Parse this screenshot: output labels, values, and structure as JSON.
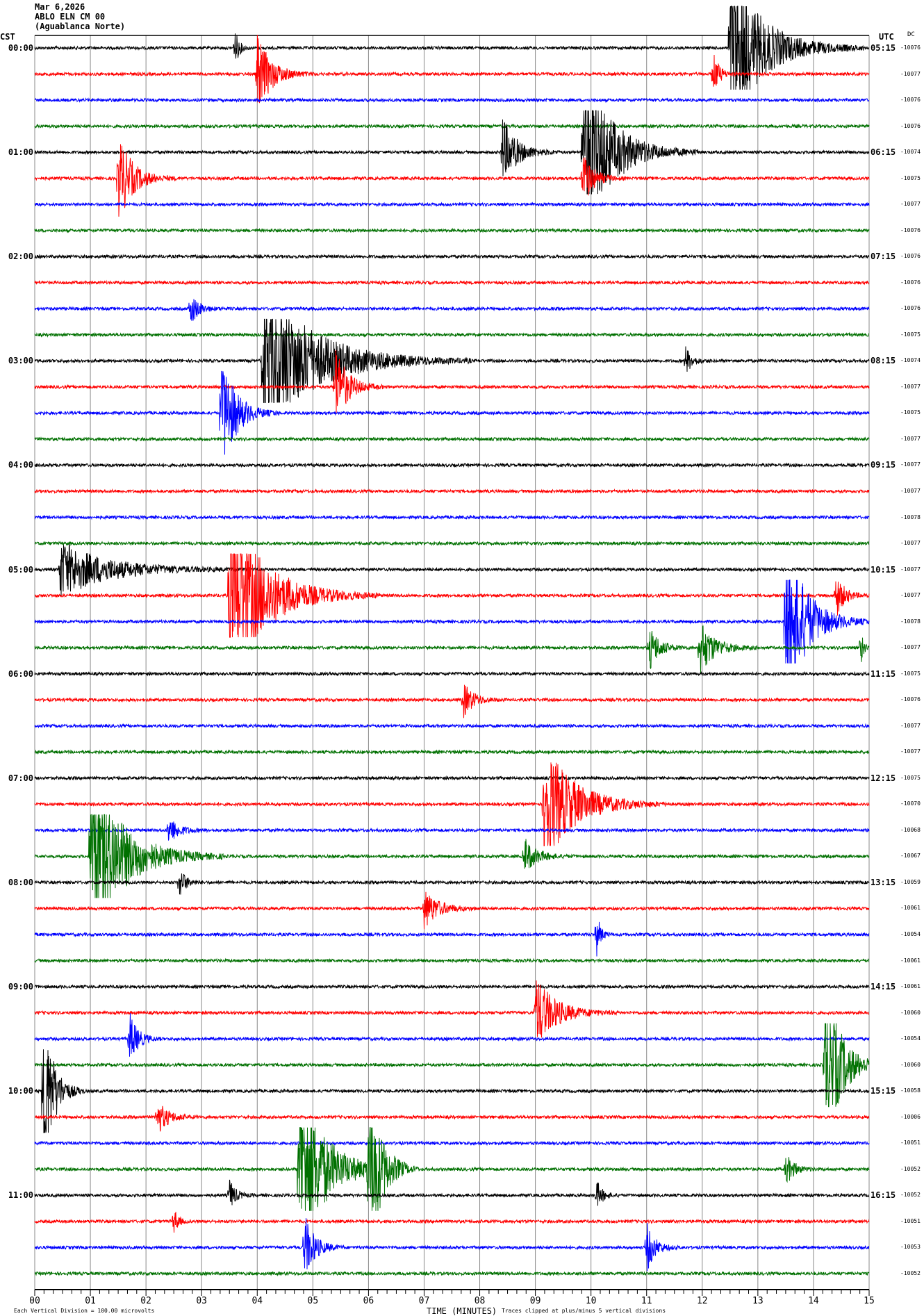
{
  "header": {
    "date": "Mar 6,2026",
    "station": "ABLO ELN CM 00",
    "location": "(Aguablanca Norte)"
  },
  "left_tz": "CST",
  "right_tz": "UTC",
  "dc_label": "DC",
  "footer": {
    "scale_note": "Each Vertical Division =  100.00 microvolts",
    "xlabel": "TIME (MINUTES)",
    "clip_note": "Traces clipped at plus/minus 5 vertical divisions"
  },
  "chart_data": {
    "type": "line",
    "title": "",
    "xlabel": "TIME (MINUTES)",
    "xlim": [
      0,
      15
    ],
    "x_ticks": [
      "00",
      "01",
      "02",
      "03",
      "04",
      "05",
      "06",
      "07",
      "08",
      "09",
      "10",
      "11",
      "12",
      "13",
      "14",
      "15"
    ],
    "grid": true,
    "trace_colors": [
      "#000000",
      "#ff0000",
      "#0000ff",
      "#007000"
    ],
    "cst_labels": [
      "00:00",
      "01:00",
      "02:00",
      "03:00",
      "04:00",
      "05:00",
      "06:00",
      "07:00",
      "08:00",
      "09:00",
      "10:00",
      "11:00"
    ],
    "utc_labels": [
      "05:15",
      "06:15",
      "07:15",
      "08:15",
      "09:15",
      "10:15",
      "11:15",
      "12:15",
      "13:15",
      "14:15",
      "15:15",
      "16:15"
    ],
    "dc_offsets": [
      -10076,
      -10077,
      -10076,
      -10076,
      -10074,
      -10075,
      -10077,
      -10076,
      -10076,
      -10076,
      -10076,
      -10075,
      -10074,
      -10077,
      -10075,
      -10077,
      -10077,
      -10077,
      -10078,
      -10077,
      -10077,
      -10077,
      -10078,
      -10077,
      -10075,
      -10076,
      -10077,
      -10077,
      -10075,
      -10070,
      -10068,
      -10067,
      -10059,
      -10061,
      -10054,
      -10061,
      -10061,
      -10060,
      -10054,
      -10060,
      -10058,
      -10006,
      -10051,
      -10052,
      -10052,
      -10051,
      -10053,
      -10052
    ],
    "clip_divisions": 5,
    "events": [
      {
        "row": 0,
        "minute": 12.5,
        "amp": 4.5,
        "dur": 1.6
      },
      {
        "row": 0,
        "minute": 3.6,
        "amp": 1.0,
        "dur": 0.2
      },
      {
        "row": 1,
        "minute": 4.0,
        "amp": 2.2,
        "dur": 0.7
      },
      {
        "row": 1,
        "minute": 12.2,
        "amp": 1.2,
        "dur": 0.3
      },
      {
        "row": 4,
        "minute": 8.4,
        "amp": 2.0,
        "dur": 0.7
      },
      {
        "row": 4,
        "minute": 9.85,
        "amp": 5,
        "dur": 1.4
      },
      {
        "row": 5,
        "minute": 1.5,
        "amp": 2.5,
        "dur": 0.7
      },
      {
        "row": 5,
        "minute": 9.85,
        "amp": 1.6,
        "dur": 0.5
      },
      {
        "row": 10,
        "minute": 2.8,
        "amp": 0.9,
        "dur": 0.4
      },
      {
        "row": 12,
        "minute": 4.1,
        "amp": 4.5,
        "dur": 2.5
      },
      {
        "row": 12,
        "minute": 11.7,
        "amp": 0.8,
        "dur": 0.3
      },
      {
        "row": 13,
        "minute": 5.4,
        "amp": 2.3,
        "dur": 0.6
      },
      {
        "row": 14,
        "minute": 3.35,
        "amp": 3.5,
        "dur": 0.7
      },
      {
        "row": 20,
        "minute": 0.45,
        "amp": 1.6,
        "dur": 2.3
      },
      {
        "row": 21,
        "minute": 3.5,
        "amp": 5,
        "dur": 1.8
      },
      {
        "row": 21,
        "minute": 14.4,
        "amp": 1.3,
        "dur": 0.4
      },
      {
        "row": 22,
        "minute": 13.5,
        "amp": 5,
        "dur": 1.0
      },
      {
        "row": 23,
        "minute": 11.05,
        "amp": 1.2,
        "dur": 0.5
      },
      {
        "row": 23,
        "minute": 11.95,
        "amp": 1.6,
        "dur": 0.7
      },
      {
        "row": 23,
        "minute": 14.85,
        "amp": 1.0,
        "dur": 0.15
      },
      {
        "row": 25,
        "minute": 7.7,
        "amp": 1.0,
        "dur": 0.5
      },
      {
        "row": 29,
        "minute": 9.15,
        "amp": 3.5,
        "dur": 1.5
      },
      {
        "row": 30,
        "minute": 2.4,
        "amp": 0.8,
        "dur": 0.5
      },
      {
        "row": 31,
        "minute": 1.0,
        "amp": 5,
        "dur": 1.6
      },
      {
        "row": 31,
        "minute": 8.8,
        "amp": 1.0,
        "dur": 0.6
      },
      {
        "row": 32,
        "minute": 2.6,
        "amp": 0.9,
        "dur": 0.3
      },
      {
        "row": 33,
        "minute": 7.0,
        "amp": 1.1,
        "dur": 0.7
      },
      {
        "row": 34,
        "minute": 10.1,
        "amp": 1.2,
        "dur": 0.2
      },
      {
        "row": 37,
        "minute": 9.0,
        "amp": 2.0,
        "dur": 1.0
      },
      {
        "row": 38,
        "minute": 1.7,
        "amp": 1.5,
        "dur": 0.4
      },
      {
        "row": 39,
        "minute": 14.2,
        "amp": 5,
        "dur": 0.8
      },
      {
        "row": 40,
        "minute": 0.15,
        "amp": 5,
        "dur": 0.5
      },
      {
        "row": 41,
        "minute": 2.2,
        "amp": 1.0,
        "dur": 0.5
      },
      {
        "row": 43,
        "minute": 4.75,
        "amp": 5,
        "dur": 1.3
      },
      {
        "row": 43,
        "minute": 6.0,
        "amp": 5,
        "dur": 0.6
      },
      {
        "row": 43,
        "minute": 13.5,
        "amp": 0.9,
        "dur": 0.4
      },
      {
        "row": 44,
        "minute": 3.5,
        "amp": 0.9,
        "dur": 0.3
      },
      {
        "row": 44,
        "minute": 10.1,
        "amp": 0.8,
        "dur": 0.3
      },
      {
        "row": 45,
        "minute": 2.5,
        "amp": 0.8,
        "dur": 0.2
      },
      {
        "row": 46,
        "minute": 4.85,
        "amp": 1.8,
        "dur": 0.5
      },
      {
        "row": 46,
        "minute": 11.0,
        "amp": 1.4,
        "dur": 0.4
      }
    ]
  }
}
